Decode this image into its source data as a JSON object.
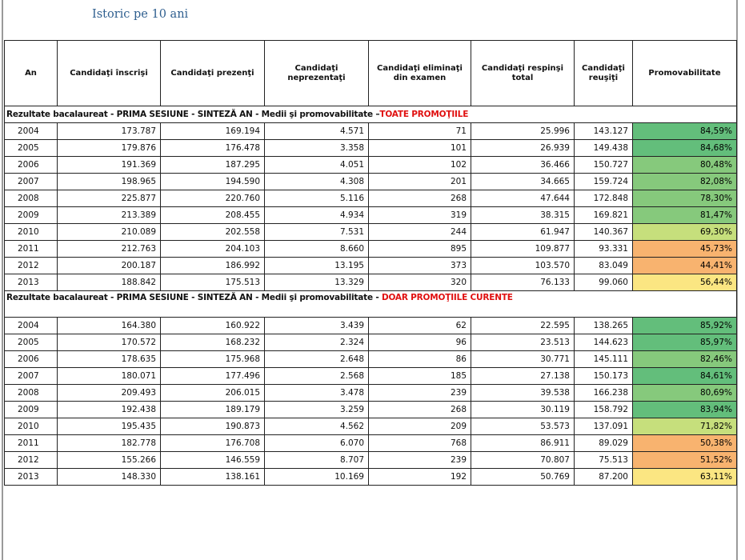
{
  "title": "Istoric pe 10 ani",
  "colors": {
    "pct_high": "#63be7b",
    "pct_mid_high": "#86c97c",
    "pct_mid": "#c6df7c",
    "pct_low": "#f8b36f",
    "pct_lowmid": "#fbe682"
  },
  "headers": [
    "An",
    "Candidaţi înscrişi",
    "Candidaţi prezenţi",
    "Candidaţi neprezentaţi",
    "Candidaţi eliminaţi din examen",
    "Candidaţi respinşi total",
    "Candidaţi reuşiţi",
    "Promovabilitate"
  ],
  "sections": [
    {
      "label": "Rezultate bacalaureat - PRIMA SESIUNE - SINTEZĂ AN - Medii şi promovabilitate –",
      "highlight": "TOATE PROMOŢIILE",
      "rows": [
        [
          "2004",
          "173.787",
          "169.194",
          "4.571",
          "71",
          "25.996",
          "143.127",
          "84,59%"
        ],
        [
          "2005",
          "179.876",
          "176.478",
          "3.358",
          "101",
          "26.939",
          "149.438",
          "84,68%"
        ],
        [
          "2006",
          "191.369",
          "187.295",
          "4.051",
          "102",
          "36.466",
          "150.727",
          "80,48%"
        ],
        [
          "2007",
          "198.965",
          "194.590",
          "4.308",
          "201",
          "34.665",
          "159.724",
          "82,08%"
        ],
        [
          "2008",
          "225.877",
          "220.760",
          "5.116",
          "268",
          "47.644",
          "172.848",
          "78,30%"
        ],
        [
          "2009",
          "213.389",
          "208.455",
          "4.934",
          "319",
          "38.315",
          "169.821",
          "81,47%"
        ],
        [
          "2010",
          "210.089",
          "202.558",
          "7.531",
          "244",
          "61.947",
          "140.367",
          "69,30%"
        ],
        [
          "2011",
          "212.763",
          "204.103",
          "8.660",
          "895",
          "109.877",
          "93.331",
          "45,73%"
        ],
        [
          "2012",
          "200.187",
          "186.992",
          "13.195",
          "373",
          "103.570",
          "83.049",
          "44,41%"
        ],
        [
          "2013",
          "188.842",
          "175.513",
          "13.329",
          "320",
          "76.133",
          "99.060",
          "56,44%"
        ]
      ]
    },
    {
      "label": "Rezultate bacalaureat - PRIMA SESIUNE - SINTEZĂ AN - Medii şi promovabilitate - ",
      "highlight": "DOAR PROMOŢIILE CURENTE",
      "rows": [
        [
          "2004",
          "164.380",
          "160.922",
          "3.439",
          "62",
          "22.595",
          "138.265",
          "85,92%"
        ],
        [
          "2005",
          "170.572",
          "168.232",
          "2.324",
          "96",
          "23.513",
          "144.623",
          "85,97%"
        ],
        [
          "2006",
          "178.635",
          "175.968",
          "2.648",
          "86",
          "30.771",
          "145.111",
          "82,46%"
        ],
        [
          "2007",
          "180.071",
          "177.496",
          "2.568",
          "185",
          "27.138",
          "150.173",
          "84,61%"
        ],
        [
          "2008",
          "209.493",
          "206.015",
          "3.478",
          "239",
          "39.538",
          "166.238",
          "80,69%"
        ],
        [
          "2009",
          "192.438",
          "189.179",
          "3.259",
          "268",
          "30.119",
          "158.792",
          "83,94%"
        ],
        [
          "2010",
          "195.435",
          "190.873",
          "4.562",
          "209",
          "53.573",
          "137.091",
          "71,82%"
        ],
        [
          "2011",
          "182.778",
          "176.708",
          "6.070",
          "768",
          "86.911",
          "89.029",
          "50,38%"
        ],
        [
          "2012",
          "155.266",
          "146.559",
          "8.707",
          "239",
          "70.807",
          "75.513",
          "51,52%"
        ],
        [
          "2013",
          "148.330",
          "138.161",
          "10.169",
          "192",
          "50.769",
          "87.200",
          "63,11%"
        ]
      ]
    }
  ]
}
